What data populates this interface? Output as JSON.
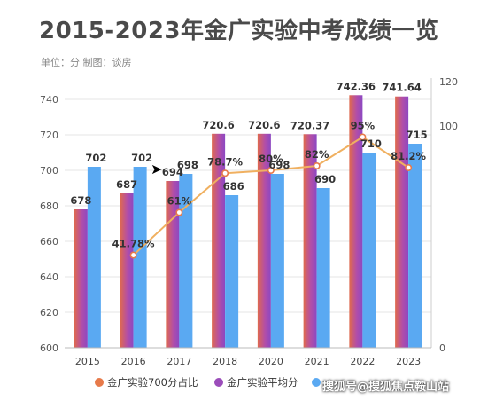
{
  "header": {
    "title": "2015-2023年金广实验中考成绩一览",
    "subtitle": "单位：分 制图：谈房"
  },
  "watermark": "搜狐号@搜狐焦点鞍山站",
  "colors": {
    "bar_purple_top": "#9b4dba",
    "bar_purple_bottom": "#e8704a",
    "bar_blue": "#5aa9f2",
    "line_orange": "#f0b060",
    "line_point": "#e77a4a"
  },
  "chart_data": {
    "type": "bar",
    "categories": [
      "2015",
      "2016",
      "2017",
      "2018",
      "2020",
      "2021",
      "2022",
      "2023"
    ],
    "ylim": [
      600,
      740
    ],
    "yticks": [
      600,
      620,
      640,
      660,
      680,
      700,
      720,
      740
    ],
    "y2lim": [
      0,
      120
    ],
    "y2ticks": [
      0,
      100,
      120
    ],
    "series": [
      {
        "name": "金广实验平均分",
        "kind": "bar",
        "axis": "left",
        "values": [
          678,
          687,
          694,
          720.6,
          720.6,
          720.37,
          742.36,
          741.64
        ],
        "labels": [
          "678",
          "687",
          "694",
          "720.6",
          "720.6",
          "720.37",
          "742.36",
          "741.64"
        ]
      },
      {
        "name": "",
        "kind": "bar",
        "axis": "left",
        "values": [
          702,
          702,
          698,
          686,
          698,
          690,
          710,
          715
        ],
        "labels": [
          "702",
          "702",
          "698",
          "686",
          "698",
          "690",
          "710",
          "715"
        ]
      },
      {
        "name": "金广实验700分占比",
        "kind": "line",
        "axis": "right",
        "values": [
          null,
          41.78,
          61,
          78.7,
          80,
          82,
          95,
          81.2
        ],
        "labels": [
          "",
          "41.78%",
          "61%",
          "78.7%",
          "80%",
          "82%",
          "95%",
          "81.2%"
        ]
      }
    ],
    "legend": {
      "position": "bottom",
      "items": [
        "金广实验700分占比",
        "金广实验平均分"
      ]
    }
  }
}
